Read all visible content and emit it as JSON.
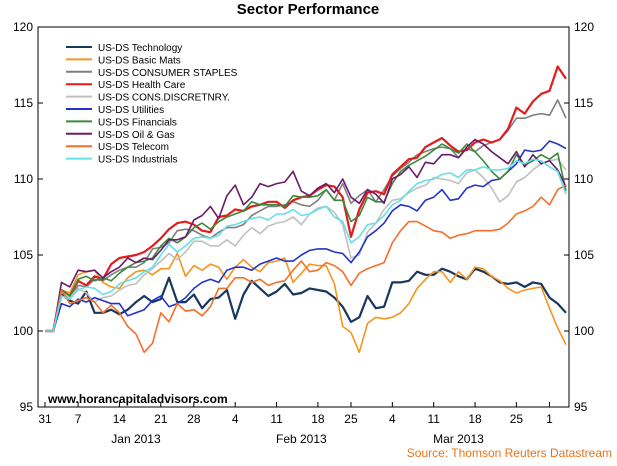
{
  "chart_data": {
    "type": "line",
    "title": "Sector Performance",
    "watermark": "www.horancapitaladvisors.com",
    "source": "Source: Thomson Reuters Datastream",
    "ylim": [
      95,
      120
    ],
    "yticks": [
      95,
      100,
      105,
      110,
      115,
      120
    ],
    "grid": false,
    "legend_position": "top-left",
    "x_ticks": [
      {
        "i": 0,
        "label": "31"
      },
      {
        "i": 4,
        "label": "7"
      },
      {
        "i": 9,
        "label": "14"
      },
      {
        "i": 14,
        "label": "21"
      },
      {
        "i": 18,
        "label": "28"
      },
      {
        "i": 23,
        "label": "4"
      },
      {
        "i": 28,
        "label": "11"
      },
      {
        "i": 33,
        "label": "18"
      },
      {
        "i": 37,
        "label": "25"
      },
      {
        "i": 42,
        "label": "4"
      },
      {
        "i": 47,
        "label": "11"
      },
      {
        "i": 52,
        "label": "18"
      },
      {
        "i": 57,
        "label": "25"
      },
      {
        "i": 61,
        "label": "1"
      }
    ],
    "months": [
      {
        "i": 11,
        "label": "Jan 2013"
      },
      {
        "i": 31,
        "label": "Feb 2013"
      },
      {
        "i": 50,
        "label": "Mar 2013"
      }
    ],
    "series": [
      {
        "name": "US-DS Technology",
        "color": "#17375e",
        "values": [
          100,
          100,
          102.4,
          102,
          101.8,
          102.6,
          101.2,
          101.2,
          101.4,
          101.1,
          101.4,
          101.9,
          102.3,
          101.9,
          102.1,
          103.5,
          101.9,
          101.9,
          102.4,
          101.5,
          102.1,
          102.2,
          102.7,
          100.8,
          102.4,
          103.3,
          102.8,
          102.3,
          102.6,
          103.1,
          102.4,
          102.5,
          102.8,
          102.7,
          102.6,
          102.2,
          101.6,
          100.6,
          100.9,
          102.3,
          101.5,
          101.6,
          103.2,
          103.2,
          103.3,
          103.9,
          103.7,
          103.7,
          104.1,
          103.9,
          103.6,
          103.4,
          104.1,
          103.9,
          103.6,
          103.2,
          103.1,
          103.2,
          102.9,
          103.2,
          103.1,
          102.2,
          101.8,
          101.2
        ]
      },
      {
        "name": "US-DS Basic Mats",
        "color": "#f7941d",
        "values": [
          100,
          100,
          102.7,
          102.5,
          103.7,
          103.9,
          104.0,
          103.2,
          102.9,
          102.8,
          103.5,
          103.9,
          104.0,
          103.7,
          104.1,
          104.1,
          105.1,
          103.6,
          104.3,
          104.0,
          104.4,
          104.2,
          103.4,
          104.2,
          104.7,
          104.2,
          103.9,
          104.5,
          104.6,
          104.8,
          103.2,
          103.8,
          104.4,
          104.3,
          104.3,
          103.1,
          100.3,
          99.9,
          98.6,
          100.5,
          100.9,
          100.8,
          100.9,
          101.2,
          101.8,
          102.8,
          103.4,
          103.9,
          103.9,
          103.2,
          103.9,
          103.4,
          104.2,
          104.1,
          103.6,
          103.3,
          102.8,
          102.5,
          102.7,
          102.8,
          102.9,
          101.5,
          100.2,
          99.1
        ]
      },
      {
        "name": "US-DS CONSUMER STAPLES",
        "color": "#7f7f7f",
        "values": [
          100,
          100,
          102.6,
          102.1,
          103.0,
          102.9,
          103.4,
          103.3,
          103.7,
          104.0,
          104.2,
          104.2,
          104.5,
          105.4,
          105.5,
          105.8,
          106.6,
          106.7,
          106.6,
          106.3,
          106.1,
          106.5,
          106.8,
          106.8,
          107.0,
          107.6,
          107.9,
          108.2,
          108.2,
          108.3,
          108.5,
          108.3,
          108.2,
          108.6,
          109.3,
          108.6,
          109.7,
          108.4,
          108.9,
          109.3,
          108.5,
          109.3,
          110.2,
          110.7,
          111.1,
          111.6,
          111.8,
          112.0,
          112.1,
          112.0,
          111.4,
          112.0,
          111.8,
          112.2,
          112.4,
          112.6,
          113.2,
          114.0,
          114.0,
          114.2,
          114.3,
          114.2,
          115.2,
          114.0
        ]
      },
      {
        "name": "US-DS Health Care",
        "color": "#e41a1c",
        "values": [
          100,
          100,
          102.7,
          102.3,
          103.3,
          103.0,
          103.6,
          103.4,
          104.4,
          104.8,
          104.9,
          105.0,
          105.2,
          105.6,
          106.1,
          106.7,
          107.1,
          107.2,
          107.0,
          106.6,
          106.5,
          107.5,
          107.6,
          108.0,
          107.9,
          108.2,
          108.3,
          108.5,
          108.5,
          108.1,
          108.6,
          108.8,
          108.9,
          109.3,
          109.6,
          109.5,
          108.8,
          106.2,
          108.0,
          109.1,
          109.2,
          109.0,
          110.3,
          110.8,
          111.3,
          111.4,
          112.1,
          112.4,
          112.7,
          112.2,
          111.8,
          111.9,
          112.4,
          112.6,
          112.4,
          112.6,
          113.3,
          114.7,
          114.3,
          115.1,
          115.6,
          115.8,
          117.4,
          116.6
        ]
      },
      {
        "name": "US-DS CONS.DISCRETNRY.",
        "color": "#c0c0c0",
        "values": [
          100,
          100,
          102.6,
          102.2,
          102.8,
          102.5,
          101.9,
          102.2,
          102.3,
          102.7,
          103.0,
          103.1,
          103.7,
          104.1,
          104.6,
          105.1,
          104.7,
          105.2,
          105.9,
          105.9,
          105.6,
          105.6,
          106.0,
          105.6,
          106.3,
          106.8,
          106.4,
          106.9,
          107.1,
          107.2,
          107.5,
          107.0,
          107.7,
          108.1,
          108.2,
          107.8,
          107.0,
          104.8,
          105.0,
          106.5,
          107.1,
          108.0,
          108.6,
          108.7,
          109.1,
          109.4,
          109.6,
          110.1,
          110.0,
          109.9,
          109.7,
          110.4,
          110.6,
          110.1,
          109.4,
          108.5,
          108.9,
          109.8,
          110.1,
          110.6,
          111.0,
          111.2,
          111.3,
          110.6
        ]
      },
      {
        "name": "US-DS Utilities",
        "color": "#2233cc",
        "values": [
          100,
          100,
          101.8,
          101.6,
          102.1,
          101.9,
          102.2,
          102.0,
          101.8,
          101.8,
          101.0,
          101.2,
          101.4,
          102.0,
          102.3,
          101.6,
          101.8,
          102.2,
          102.8,
          103.2,
          103.4,
          103.2,
          104.0,
          104.2,
          104.2,
          104.0,
          104.4,
          104.6,
          104.8,
          104.6,
          104.6,
          105.0,
          105.3,
          105.4,
          105.4,
          105.2,
          105.1,
          104.5,
          105.2,
          106.2,
          106.6,
          107.1,
          107.9,
          108.3,
          108.2,
          107.9,
          108.6,
          108.8,
          109.3,
          108.6,
          108.7,
          109.4,
          109.6,
          109.5,
          109.9,
          110.0,
          110.5,
          111.0,
          111.9,
          111.8,
          111.9,
          112.5,
          112.3,
          112.0
        ]
      },
      {
        "name": "US-DS Financials",
        "color": "#3a8a3a",
        "values": [
          100,
          100,
          102.7,
          102.3,
          103.4,
          103.6,
          103.3,
          103.5,
          103.3,
          103.8,
          104.2,
          104.5,
          104.6,
          104.8,
          105.6,
          106.1,
          105.8,
          106.2,
          106.8,
          107.1,
          106.7,
          107.2,
          107.5,
          107.7,
          107.9,
          108.5,
          108.3,
          108.3,
          108.3,
          108.2,
          108.9,
          108.8,
          108.8,
          108.9,
          109.3,
          108.6,
          108.6,
          107.2,
          107.6,
          108.8,
          108.5,
          108.5,
          109.7,
          110.5,
          110.9,
          111.2,
          111.5,
          111.9,
          112.3,
          112.0,
          111.7,
          112.3,
          111.8,
          111.2,
          110.5,
          110.0,
          110.5,
          111.6,
          110.9,
          111.2,
          111.6,
          111.3,
          111.7,
          109.2
        ]
      },
      {
        "name": "US-DS Oil & Gas",
        "color": "#6a1b6a",
        "values": [
          100,
          100,
          103.2,
          102.9,
          104.0,
          103.9,
          104.0,
          103.5,
          103.9,
          104.2,
          104.8,
          104.5,
          104.8,
          104.7,
          105.3,
          106.0,
          106.0,
          106.2,
          107.3,
          107.6,
          108.2,
          107.4,
          108.9,
          109.6,
          108.3,
          108.8,
          109.7,
          109.5,
          109.7,
          109.8,
          110.5,
          109.2,
          108.9,
          109.4,
          109.7,
          109.1,
          110.0,
          108.8,
          108.4,
          109.3,
          109.0,
          108.4,
          110.0,
          110.3,
          110.8,
          110.1,
          111.1,
          111.0,
          111.6,
          111.6,
          111.4,
          112.1,
          112.6,
          112.3,
          111.8,
          111.4,
          111.0,
          111.8,
          110.8,
          111.6,
          111.0,
          111.2,
          110.6,
          109.5
        ]
      },
      {
        "name": "US-DS Telecom",
        "color": "#f4702a",
        "values": [
          100,
          100,
          102.7,
          101.8,
          102.0,
          102.2,
          101.9,
          101.2,
          101.7,
          101.2,
          100.3,
          99.8,
          98.6,
          99.2,
          101.2,
          100.6,
          101.8,
          101.3,
          101.4,
          101.0,
          101.6,
          102.8,
          102.8,
          103.5,
          103.5,
          103.2,
          103.4,
          103.0,
          103.2,
          103.3,
          104.0,
          104.6,
          103.9,
          104.0,
          104.5,
          104.3,
          103.9,
          103.0,
          103.8,
          104.1,
          104.3,
          104.5,
          105.8,
          106.6,
          107.2,
          107.2,
          106.9,
          106.6,
          106.5,
          106.1,
          106.3,
          106.4,
          106.6,
          106.6,
          106.6,
          106.7,
          107.1,
          107.7,
          107.9,
          108.2,
          108.8,
          108.3,
          109.3,
          109.6
        ]
      },
      {
        "name": "US-DS Industrials",
        "color": "#66e0e6",
        "values": [
          100,
          100,
          102.3,
          102.1,
          102.7,
          102.9,
          102.8,
          102.4,
          102.6,
          103.1,
          103.3,
          103.5,
          103.9,
          104.2,
          105.0,
          105.7,
          105.2,
          105.6,
          106.1,
          106.2,
          106.1,
          106.3,
          106.9,
          107.0,
          107.2,
          107.4,
          107.5,
          107.3,
          107.7,
          107.7,
          108.0,
          107.6,
          107.7,
          108.0,
          108.2,
          107.5,
          107.2,
          105.8,
          106.2,
          107.0,
          107.1,
          107.6,
          108.3,
          108.6,
          109.2,
          109.7,
          109.9,
          110.0,
          110.3,
          110.4,
          110.1,
          110.6,
          110.6,
          110.8,
          110.6,
          110.6,
          110.7,
          111.2,
          111.0,
          111.3,
          111.2,
          110.8,
          110.5,
          109.0
        ]
      }
    ]
  }
}
